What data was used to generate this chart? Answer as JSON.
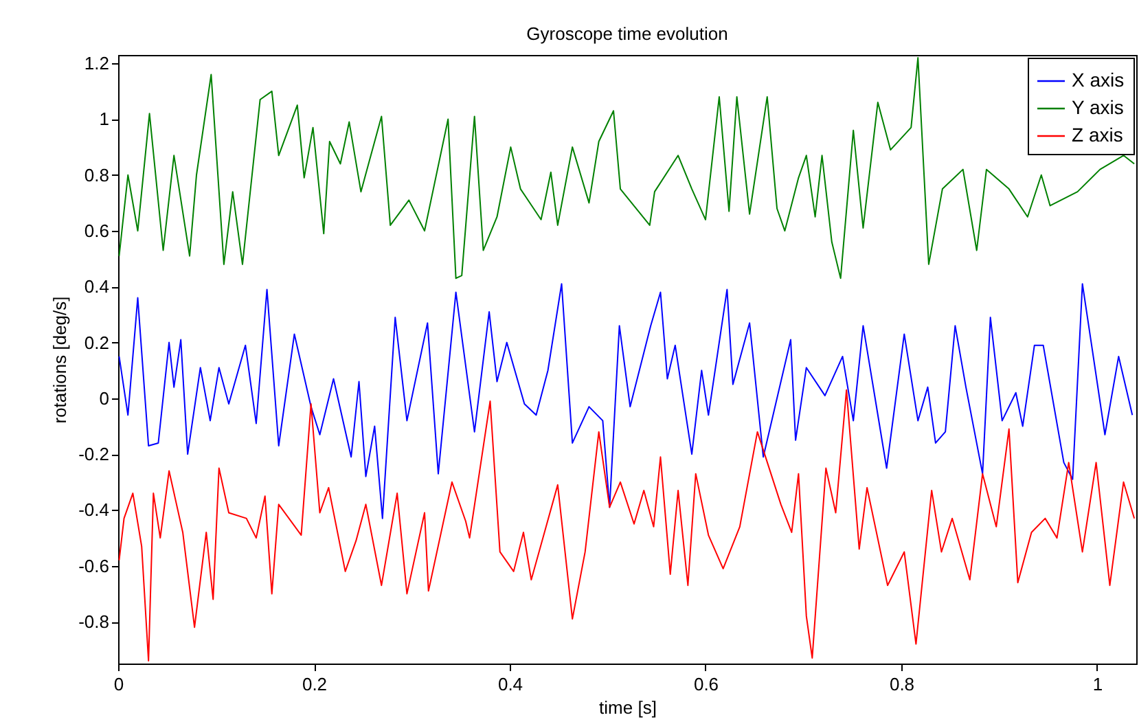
{
  "chart_data": {
    "type": "line",
    "title": "Gyroscope time evolution",
    "xlabel": "time [s]",
    "ylabel": "rotations [deg/s]",
    "xlim": [
      0,
      1.04
    ],
    "ylim": [
      -0.95,
      1.23
    ],
    "xticks": [
      0,
      0.2,
      0.4,
      0.6,
      0.8,
      1
    ],
    "yticks": [
      -0.8,
      -0.6,
      -0.4,
      -0.2,
      0,
      0.2,
      0.4,
      0.6,
      0.8,
      1,
      1.2
    ],
    "grid": false,
    "legend": "top right",
    "marker": "none",
    "line_style": "solid",
    "series": [
      {
        "name": "X axis",
        "color": "#0000ff",
        "x": [
          0.001,
          0.01,
          0.02,
          0.031,
          0.041,
          0.052,
          0.057,
          0.064,
          0.071,
          0.084,
          0.094,
          0.103,
          0.113,
          0.13,
          0.141,
          0.152,
          0.164,
          0.18,
          0.197,
          0.206,
          0.22,
          0.238,
          0.246,
          0.253,
          0.262,
          0.27,
          0.283,
          0.295,
          0.316,
          0.327,
          0.345,
          0.364,
          0.379,
          0.387,
          0.397,
          0.415,
          0.427,
          0.439,
          0.453,
          0.464,
          0.481,
          0.495,
          0.502,
          0.512,
          0.523,
          0.544,
          0.554,
          0.561,
          0.569,
          0.586,
          0.596,
          0.603,
          0.622,
          0.628,
          0.645,
          0.659,
          0.667,
          0.687,
          0.692,
          0.703,
          0.722,
          0.74,
          0.751,
          0.761,
          0.785,
          0.803,
          0.817,
          0.827,
          0.835,
          0.845,
          0.855,
          0.866,
          0.883,
          0.891,
          0.903,
          0.917,
          0.924,
          0.936,
          0.945,
          0.966,
          0.975,
          0.985,
          0.994,
          1.008,
          1.022,
          1.036
        ],
        "values": [
          0.15,
          -0.06,
          0.36,
          -0.17,
          -0.16,
          0.2,
          0.04,
          0.21,
          -0.2,
          0.11,
          -0.08,
          0.11,
          -0.02,
          0.19,
          -0.09,
          0.39,
          -0.17,
          0.23,
          -0.03,
          -0.13,
          0.07,
          -0.21,
          0.06,
          -0.28,
          -0.1,
          -0.43,
          0.29,
          -0.08,
          0.27,
          -0.27,
          0.38,
          -0.12,
          0.31,
          0.06,
          0.2,
          -0.02,
          -0.06,
          0.1,
          0.41,
          -0.16,
          -0.03,
          -0.08,
          -0.39,
          0.26,
          -0.03,
          0.26,
          0.38,
          0.07,
          0.19,
          -0.2,
          0.1,
          -0.06,
          0.39,
          0.05,
          0.27,
          -0.21,
          -0.09,
          0.21,
          -0.15,
          0.11,
          0.01,
          0.15,
          -0.08,
          0.26,
          -0.25,
          0.23,
          -0.08,
          0.04,
          -0.16,
          -0.12,
          0.26,
          0.04,
          -0.27,
          0.29,
          -0.08,
          0.02,
          -0.1,
          0.19,
          0.19,
          -0.23,
          -0.29,
          0.41,
          0.2,
          -0.13,
          0.15,
          -0.06
        ]
      },
      {
        "name": "Y axis",
        "color": "#008000",
        "x": [
          0.001,
          0.01,
          0.02,
          0.032,
          0.046,
          0.057,
          0.073,
          0.08,
          0.095,
          0.108,
          0.117,
          0.127,
          0.145,
          0.157,
          0.164,
          0.183,
          0.19,
          0.199,
          0.21,
          0.216,
          0.227,
          0.236,
          0.248,
          0.269,
          0.278,
          0.297,
          0.313,
          0.337,
          0.345,
          0.351,
          0.364,
          0.373,
          0.387,
          0.401,
          0.411,
          0.432,
          0.442,
          0.449,
          0.464,
          0.481,
          0.491,
          0.506,
          0.513,
          0.543,
          0.548,
          0.572,
          0.586,
          0.6,
          0.614,
          0.624,
          0.632,
          0.645,
          0.663,
          0.673,
          0.681,
          0.695,
          0.703,
          0.712,
          0.719,
          0.729,
          0.738,
          0.751,
          0.761,
          0.776,
          0.789,
          0.81,
          0.817,
          0.828,
          0.842,
          0.863,
          0.877,
          0.887,
          0.91,
          0.929,
          0.943,
          0.952,
          0.98,
          1.003,
          1.027,
          1.038
        ],
        "values": [
          0.51,
          0.8,
          0.6,
          1.02,
          0.53,
          0.87,
          0.51,
          0.8,
          1.16,
          0.48,
          0.74,
          0.48,
          1.07,
          1.1,
          0.87,
          1.05,
          0.79,
          0.97,
          0.59,
          0.92,
          0.84,
          0.99,
          0.74,
          1.01,
          0.62,
          0.71,
          0.6,
          1.0,
          0.43,
          0.44,
          1.01,
          0.53,
          0.65,
          0.9,
          0.75,
          0.64,
          0.81,
          0.62,
          0.9,
          0.7,
          0.92,
          1.03,
          0.75,
          0.62,
          0.74,
          0.87,
          0.75,
          0.64,
          1.08,
          0.67,
          1.08,
          0.66,
          1.08,
          0.68,
          0.6,
          0.79,
          0.87,
          0.65,
          0.87,
          0.56,
          0.43,
          0.96,
          0.61,
          1.06,
          0.89,
          0.97,
          1.22,
          0.48,
          0.75,
          0.82,
          0.53,
          0.82,
          0.75,
          0.65,
          0.8,
          0.69,
          0.74,
          0.82,
          0.87,
          0.84
        ]
      },
      {
        "name": "Z axis",
        "color": "#ff0000",
        "x": [
          0.001,
          0.006,
          0.015,
          0.024,
          0.031,
          0.036,
          0.043,
          0.052,
          0.066,
          0.078,
          0.09,
          0.097,
          0.103,
          0.113,
          0.131,
          0.141,
          0.15,
          0.157,
          0.164,
          0.187,
          0.197,
          0.206,
          0.215,
          0.232,
          0.243,
          0.253,
          0.269,
          0.285,
          0.295,
          0.313,
          0.317,
          0.341,
          0.355,
          0.359,
          0.38,
          0.39,
          0.404,
          0.414,
          0.422,
          0.449,
          0.464,
          0.477,
          0.491,
          0.502,
          0.513,
          0.527,
          0.537,
          0.547,
          0.554,
          0.564,
          0.572,
          0.582,
          0.59,
          0.603,
          0.618,
          0.635,
          0.653,
          0.677,
          0.688,
          0.695,
          0.703,
          0.709,
          0.723,
          0.733,
          0.744,
          0.757,
          0.765,
          0.786,
          0.803,
          0.815,
          0.831,
          0.841,
          0.852,
          0.87,
          0.883,
          0.897,
          0.91,
          0.919,
          0.933,
          0.947,
          0.959,
          0.971,
          0.985,
          0.999,
          1.013,
          1.027,
          1.038
        ],
        "values": [
          -0.58,
          -0.43,
          -0.34,
          -0.53,
          -0.94,
          -0.34,
          -0.5,
          -0.26,
          -0.48,
          -0.82,
          -0.48,
          -0.72,
          -0.25,
          -0.41,
          -0.43,
          -0.5,
          -0.35,
          -0.7,
          -0.38,
          -0.49,
          -0.02,
          -0.41,
          -0.32,
          -0.62,
          -0.51,
          -0.38,
          -0.67,
          -0.34,
          -0.7,
          -0.41,
          -0.69,
          -0.3,
          -0.44,
          -0.5,
          -0.01,
          -0.55,
          -0.62,
          -0.48,
          -0.65,
          -0.31,
          -0.79,
          -0.55,
          -0.12,
          -0.39,
          -0.3,
          -0.45,
          -0.33,
          -0.46,
          -0.21,
          -0.63,
          -0.33,
          -0.67,
          -0.27,
          -0.49,
          -0.61,
          -0.46,
          -0.12,
          -0.38,
          -0.48,
          -0.27,
          -0.78,
          -0.93,
          -0.25,
          -0.41,
          0.03,
          -0.54,
          -0.32,
          -0.67,
          -0.55,
          -0.88,
          -0.33,
          -0.55,
          -0.43,
          -0.65,
          -0.27,
          -0.46,
          -0.11,
          -0.66,
          -0.48,
          -0.43,
          -0.5,
          -0.23,
          -0.55,
          -0.23,
          -0.67,
          -0.3,
          -0.43
        ]
      }
    ]
  }
}
